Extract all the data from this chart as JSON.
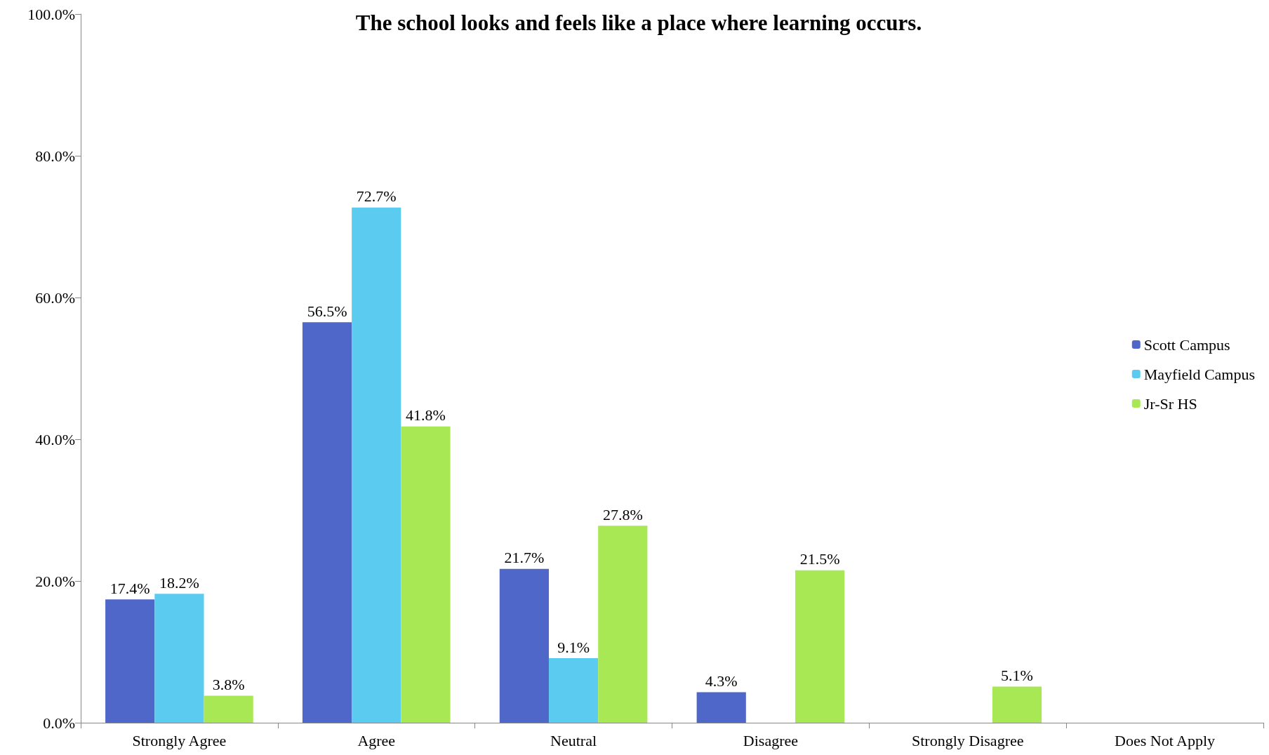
{
  "chart_data": {
    "type": "bar",
    "title": "The school looks and feels like a place where learning occurs.",
    "categories": [
      "Strongly Agree",
      "Agree",
      "Neutral",
      "Disagree",
      "Strongly Disagree",
      "Does Not Apply"
    ],
    "series": [
      {
        "name": "Scott Campus",
        "color": "#4f67c9",
        "values": [
          17.4,
          56.5,
          21.7,
          4.3,
          null,
          null
        ],
        "value_labels": [
          "17.4%",
          "56.5%",
          "21.7%",
          "4.3%",
          null,
          null
        ]
      },
      {
        "name": "Mayfield Campus",
        "color": "#5ccbf0",
        "values": [
          18.2,
          72.7,
          9.1,
          null,
          null,
          null
        ],
        "value_labels": [
          "18.2%",
          "72.7%",
          "9.1%",
          null,
          null,
          null
        ]
      },
      {
        "name": "Jr-Sr HS",
        "color": "#a8e854",
        "values": [
          3.8,
          41.8,
          27.8,
          21.5,
          5.1,
          null
        ],
        "value_labels": [
          "3.8%",
          "41.8%",
          "27.8%",
          "21.5%",
          "5.1%",
          null
        ]
      }
    ],
    "ylim": [
      0,
      100
    ],
    "yticks": [
      {
        "value": 0,
        "label": "0.0%"
      },
      {
        "value": 20,
        "label": "20.0%"
      },
      {
        "value": 40,
        "label": "40.0%"
      },
      {
        "value": 60,
        "label": "60.0%"
      },
      {
        "value": 80,
        "label": "80.0%"
      },
      {
        "value": 100,
        "label": "100.0%"
      }
    ],
    "grid": false,
    "legend": "right"
  }
}
